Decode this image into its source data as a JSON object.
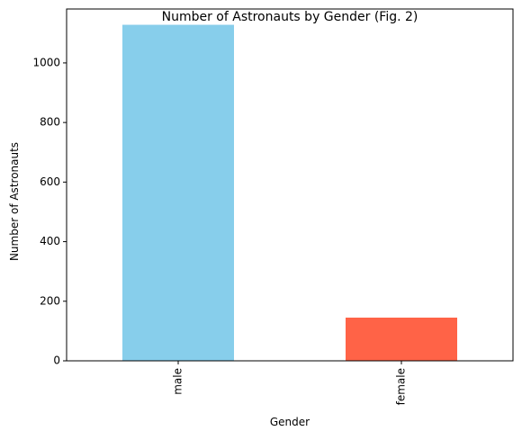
{
  "chart_data": {
    "type": "bar",
    "title": "Number of Astronauts by Gender (Fig. 2)",
    "xlabel": "Gender",
    "ylabel": "Number of Astronauts",
    "categories": [
      "male",
      "female"
    ],
    "values": [
      1128,
      145
    ],
    "colors": [
      "#87CEEB",
      "#FF6347"
    ],
    "ylim": [
      0,
      1181
    ],
    "yticks": [
      0,
      200,
      400,
      600,
      800,
      1000
    ],
    "grid": false,
    "legend": "none"
  }
}
